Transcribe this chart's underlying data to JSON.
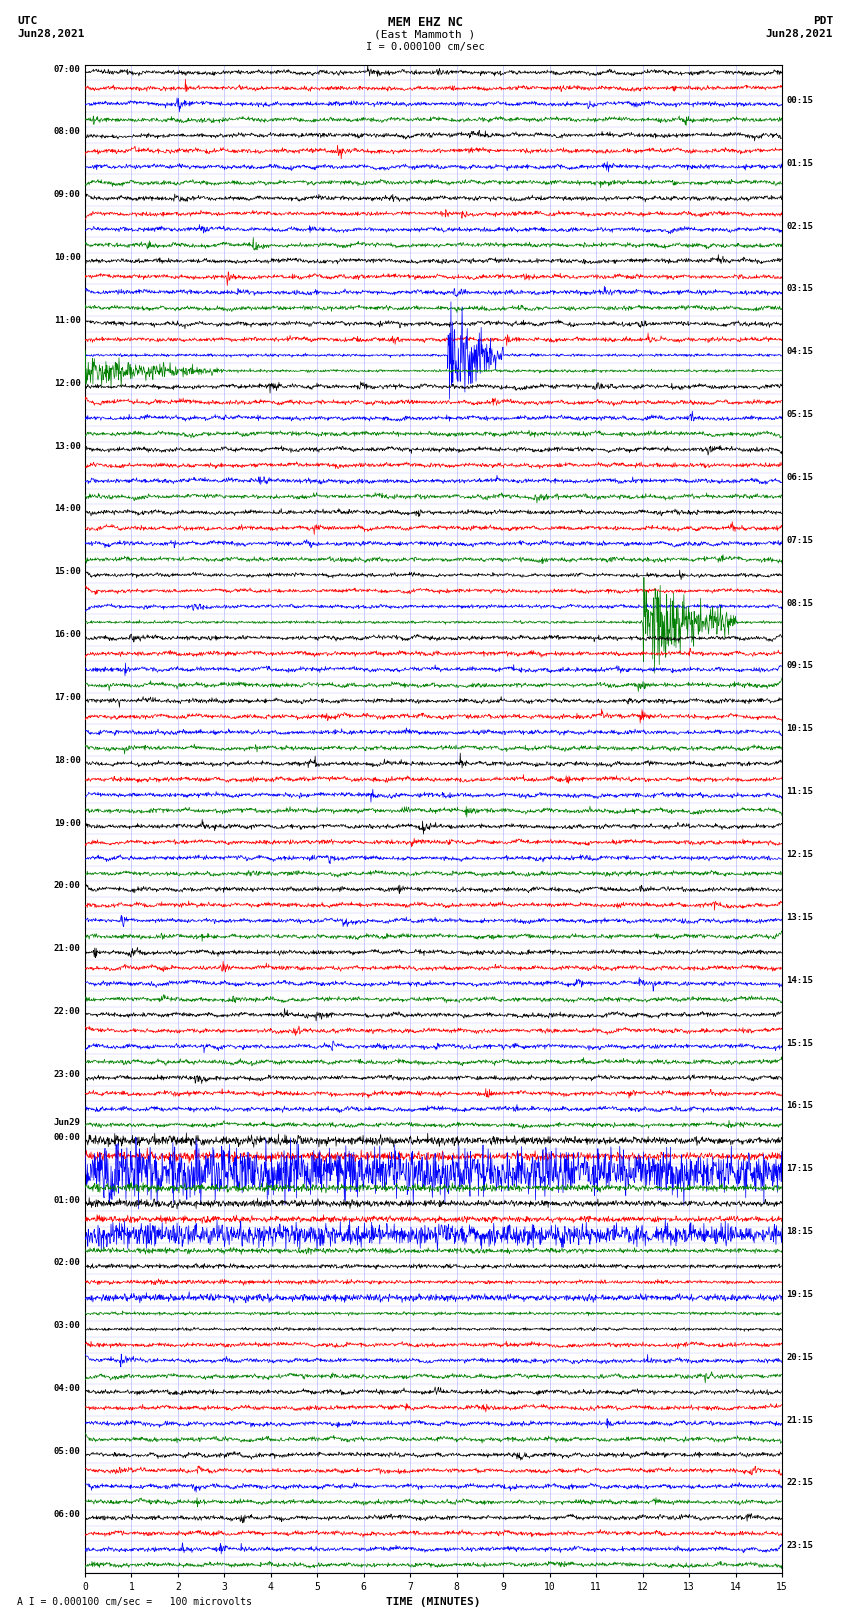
{
  "title_line1": "MEM EHZ NC",
  "title_line2": "(East Mammoth )",
  "scale_label": "I = 0.000100 cm/sec",
  "footer_label": "A I = 0.000100 cm/sec =   100 microvolts",
  "utc_label": "UTC",
  "utc_date": "Jun28,2021",
  "pdt_label": "PDT",
  "pdt_date": "Jun28,2021",
  "xlabel": "TIME (MINUTES)",
  "bg_color": "#ffffff",
  "line_colors": [
    "black",
    "red",
    "blue",
    "green"
  ],
  "grid_color": "#aaaaff",
  "noise_seed": 42,
  "total_rows": 96,
  "minutes": 15.0,
  "samples": 1500,
  "left_times": [
    "07:00",
    "08:00",
    "09:00",
    "10:00",
    "11:00",
    "12:00",
    "13:00",
    "14:00",
    "15:00",
    "16:00",
    "17:00",
    "18:00",
    "19:00",
    "20:00",
    "21:00",
    "22:00",
    "23:00",
    "Jun29",
    "00:00",
    "01:00",
    "02:00",
    "03:00",
    "04:00",
    "05:00",
    "06:00"
  ],
  "right_times": [
    "00:15",
    "01:15",
    "02:15",
    "03:15",
    "04:15",
    "05:15",
    "06:15",
    "07:15",
    "08:15",
    "09:15",
    "10:15",
    "11:15",
    "12:15",
    "13:15",
    "14:15",
    "15:15",
    "16:15",
    "17:15",
    "18:15",
    "19:15",
    "20:15",
    "21:15",
    "22:15",
    "23:15"
  ],
  "x_ticks": [
    0,
    1,
    2,
    3,
    4,
    5,
    6,
    7,
    8,
    9,
    10,
    11,
    12,
    13,
    14,
    15
  ]
}
